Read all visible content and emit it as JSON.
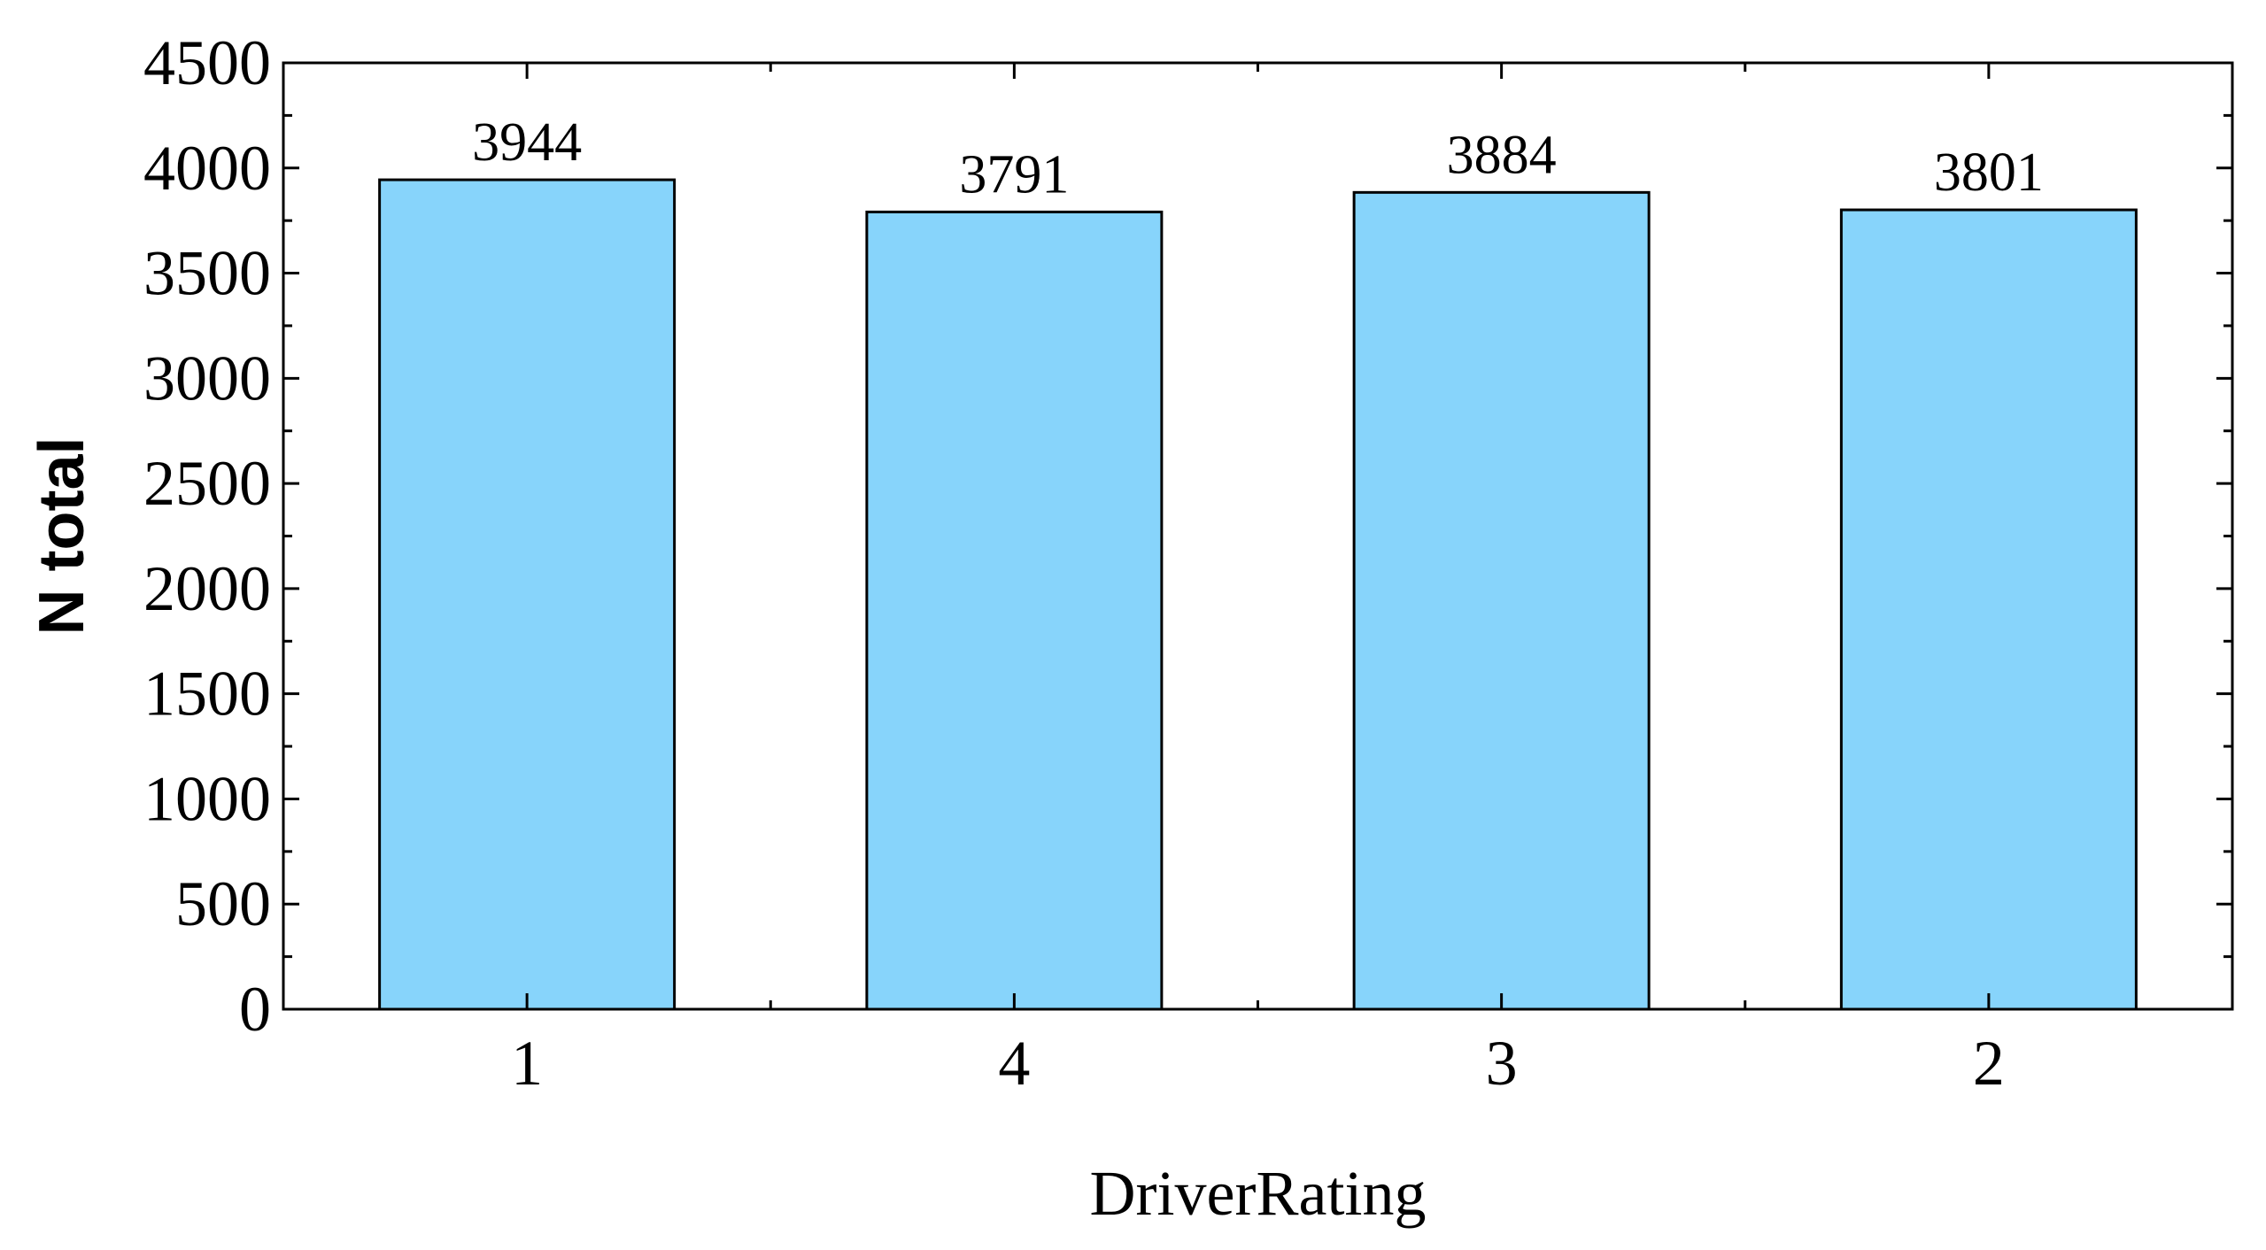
{
  "chart_data": {
    "type": "bar",
    "title": "",
    "xlabel": "DriverRating",
    "ylabel": "N total",
    "categories": [
      "1",
      "4",
      "3",
      "2"
    ],
    "values": [
      3944,
      3791,
      3884,
      3801
    ],
    "data_labels": [
      "3944",
      "3791",
      "3884",
      "3801"
    ],
    "ylim": [
      0,
      4500
    ],
    "yticks": [
      0,
      500,
      1000,
      1500,
      2000,
      2500,
      3000,
      3500,
      4000,
      4500
    ],
    "ytick_labels": [
      "0",
      "500",
      "1000",
      "1500",
      "2000",
      "2500",
      "3000",
      "3500",
      "4000",
      "4500"
    ],
    "grid": false,
    "legend": "none",
    "bar_color": "#87D4FB",
    "edge_color": "#000000"
  }
}
